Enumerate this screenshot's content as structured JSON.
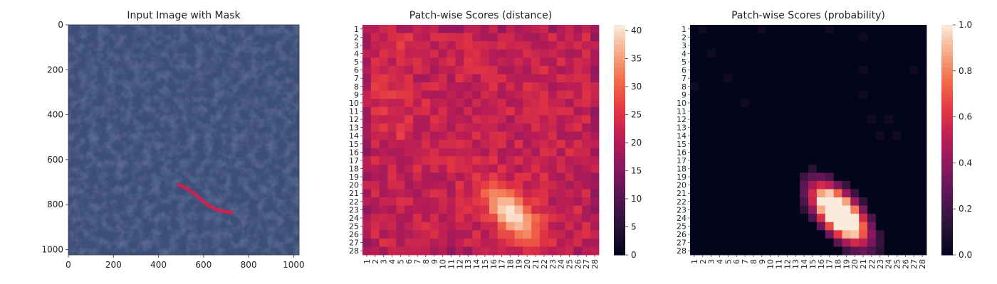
{
  "chart_data": [
    {
      "type": "image",
      "title": "Input Image with Mask",
      "xticks": [
        0,
        200,
        400,
        600,
        800,
        1000
      ],
      "yticks": [
        0,
        200,
        400,
        600,
        800,
        1000
      ],
      "xlim": [
        0,
        1024
      ],
      "ylim": [
        1024,
        0
      ],
      "background_color": "#3d4e78",
      "mask_color": "#d3214f",
      "mask_polyline": [
        [
          490,
          712
        ],
        [
          525,
          728
        ],
        [
          560,
          752
        ],
        [
          590,
          778
        ],
        [
          625,
          806
        ],
        [
          665,
          826
        ],
        [
          700,
          831
        ],
        [
          725,
          836
        ]
      ]
    },
    {
      "type": "heatmap",
      "title": "Patch-wise Scores (distance)",
      "rows": 28,
      "cols": 28,
      "tick_labels": [
        "1",
        "2",
        "3",
        "4",
        "5",
        "6",
        "7",
        "8",
        "9",
        "10",
        "11",
        "12",
        "13",
        "14",
        "15",
        "16",
        "17",
        "18",
        "19",
        "20",
        "21",
        "22",
        "23",
        "24",
        "25",
        "26",
        "27",
        "28"
      ],
      "vmin": 0,
      "vmax": 41,
      "colorbar_ticks": [
        0,
        5,
        10,
        15,
        20,
        25,
        30,
        35,
        40
      ],
      "base_value": 22,
      "anomaly_peak": 41,
      "anomaly_rows": [
        19,
        27
      ],
      "anomaly_cols": [
        13,
        23
      ]
    },
    {
      "type": "heatmap",
      "title": "Patch-wise Scores (probability)",
      "rows": 28,
      "cols": 28,
      "tick_labels": [
        "1",
        "2",
        "3",
        "4",
        "5",
        "6",
        "7",
        "8",
        "9",
        "10",
        "11",
        "12",
        "13",
        "14",
        "15",
        "16",
        "17",
        "18",
        "19",
        "20",
        "21",
        "22",
        "23",
        "24",
        "25",
        "26",
        "27",
        "28"
      ],
      "vmin": 0.0,
      "vmax": 1.0,
      "colorbar_ticks": [
        "0.0",
        "0.2",
        "0.4",
        "0.6",
        "0.8",
        "1.0"
      ],
      "base_value": 0.0,
      "anomaly_peak": 1.0,
      "anomaly_rows": [
        19,
        27
      ],
      "anomaly_cols": [
        13,
        23
      ]
    }
  ]
}
